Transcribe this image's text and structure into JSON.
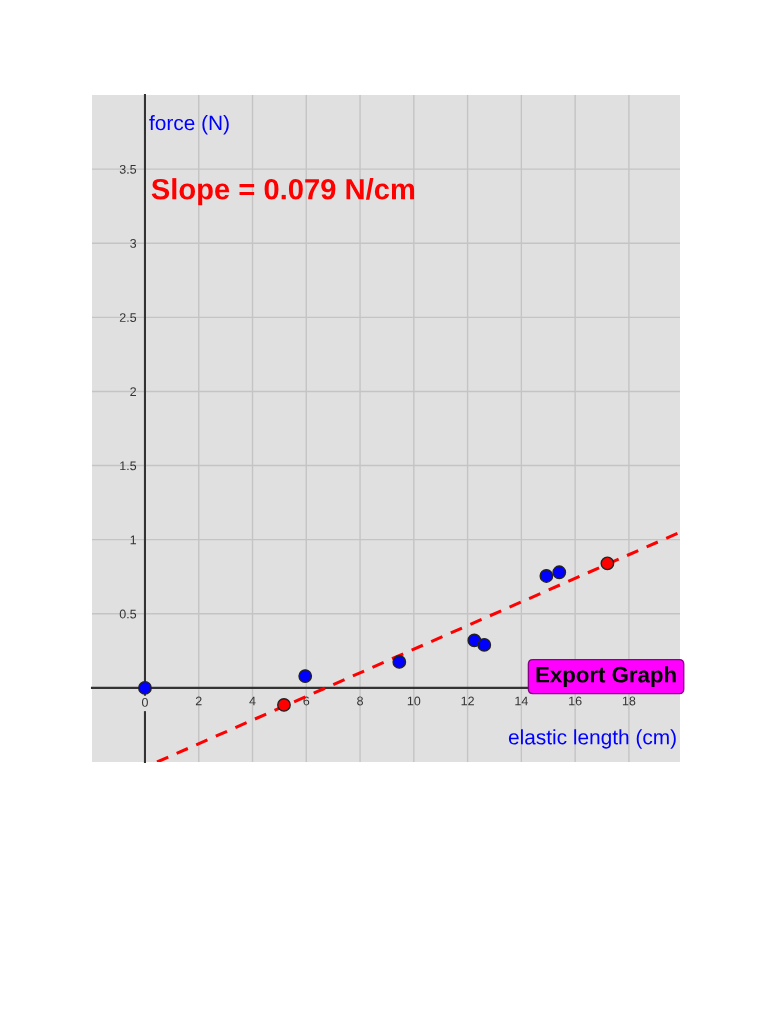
{
  "chart_data": {
    "type": "scatter",
    "xlabel": "elastic length (cm)",
    "ylabel": "force (N)",
    "annotations": [
      "Slope = 0.079 N/cm",
      "Export Graph"
    ],
    "series": [
      {
        "color": "#0000ff",
        "marker": "circle",
        "x": [
          0,
          5.96,
          9.46,
          12.25,
          12.62,
          14.93,
          15.41
        ],
        "values": [
          0,
          0.08,
          0.175,
          0.32,
          0.29,
          0.755,
          0.78
        ]
      },
      {
        "type": "line",
        "color": "#ff0000",
        "line_style": "dashed",
        "marker": "none",
        "x": [
          0.45,
          19.9
        ],
        "values": [
          -0.5,
          1.05
        ]
      },
      {
        "color": "#ff0000",
        "marker": "circle",
        "x": [
          5.17,
          17.2
        ],
        "values": [
          -0.115,
          0.84
        ]
      }
    ],
    "xlim": [
      -1.97,
      19.9
    ],
    "ylim": [
      -0.5,
      4.0
    ],
    "xticks": [
      0,
      2,
      4,
      6,
      8,
      10,
      12,
      14,
      16,
      18
    ],
    "yticks": [
      0.5,
      1,
      1.5,
      2,
      2.5,
      3,
      3.5
    ],
    "grid": true
  }
}
